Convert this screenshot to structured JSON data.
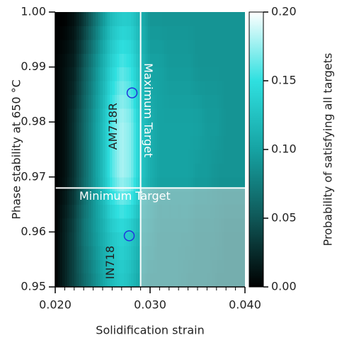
{
  "chart_data": {
    "type": "contour",
    "xlabel": "Solidification strain",
    "ylabel": "Phase stability at 650 °C",
    "colorbar_label": "Probability of satisfying all targets",
    "x": [
      0.02,
      0.021,
      0.022,
      0.023,
      0.024,
      0.025,
      0.026,
      0.027,
      0.028,
      0.029,
      0.03,
      0.031,
      0.032,
      0.033,
      0.034,
      0.035,
      0.036,
      0.037,
      0.038,
      0.039,
      0.04
    ],
    "y": [
      0.95,
      0.96,
      0.97,
      0.98,
      0.99,
      1.0
    ],
    "z": [
      [
        0,
        0.02,
        0.04,
        0.06,
        0.08,
        0.1,
        0.12,
        0.13,
        0.12,
        0.1,
        0.09,
        0.09,
        0.09,
        0.09,
        0.085,
        0.085,
        0.085,
        0.08,
        0.08,
        0.08,
        0.08
      ],
      [
        0,
        0.02,
        0.04,
        0.07,
        0.09,
        0.11,
        0.13,
        0.14,
        0.13,
        0.11,
        0.1,
        0.09,
        0.09,
        0.09,
        0.09,
        0.085,
        0.085,
        0.085,
        0.08,
        0.08,
        0.08
      ],
      [
        0,
        0.01,
        0.03,
        0.06,
        0.09,
        0.12,
        0.16,
        0.18,
        0.17,
        0.13,
        0.11,
        0.1,
        0.1,
        0.1,
        0.1,
        0.095,
        0.095,
        0.09,
        0.09,
        0.09,
        0.09
      ],
      [
        0,
        0.01,
        0.03,
        0.06,
        0.09,
        0.12,
        0.16,
        0.18,
        0.17,
        0.13,
        0.11,
        0.1,
        0.1,
        0.1,
        0.1,
        0.1,
        0.095,
        0.095,
        0.09,
        0.09,
        0.09
      ],
      [
        0,
        0.01,
        0.02,
        0.05,
        0.08,
        0.11,
        0.14,
        0.16,
        0.15,
        0.12,
        0.1,
        0.1,
        0.095,
        0.095,
        0.095,
        0.09,
        0.09,
        0.09,
        0.09,
        0.09,
        0.09
      ],
      [
        0,
        0,
        0.01,
        0.03,
        0.06,
        0.09,
        0.12,
        0.13,
        0.13,
        0.11,
        0.09,
        0.09,
        0.09,
        0.09,
        0.09,
        0.09,
        0.09,
        0.09,
        0.09,
        0.09,
        0.09
      ]
    ],
    "colormap": [
      "#000000",
      "#0f5757",
      "#16a3a3",
      "#2fe0e0",
      "#ffffff"
    ],
    "xlim": [
      0.02,
      0.04
    ],
    "xticks": [
      {
        "value": 0.02,
        "label": "0.020"
      },
      {
        "value": 0.03,
        "label": "0.030"
      },
      {
        "value": 0.04,
        "label": "0.040"
      }
    ],
    "x_minor_step": 0.001,
    "ylim": [
      0.95,
      1.0
    ],
    "yticks": [
      {
        "value": 0.95,
        "label": "0.95"
      },
      0.96,
      0.97,
      0.98,
      0.99,
      {
        "value": 1.0,
        "label": "1.00"
      }
    ],
    "zlim": [
      0,
      0.2
    ],
    "zticks": [
      {
        "value": 0,
        "label": "0.00"
      },
      0.05,
      {
        "value": 0.1,
        "label": "0.10"
      },
      0.15,
      {
        "value": 0.2,
        "label": "0.20"
      }
    ],
    "targets": {
      "max_strain": 0.029,
      "max_label": "Maximum Target",
      "min_stability": 0.968,
      "min_label": "Minimum Target",
      "color": "#ffffff"
    },
    "points": [
      {
        "name": "AM718R",
        "x": 0.0281,
        "y": 0.9853
      },
      {
        "name": "IN718",
        "x": 0.0278,
        "y": 0.9593
      }
    ],
    "point_color": "#2233dd"
  }
}
